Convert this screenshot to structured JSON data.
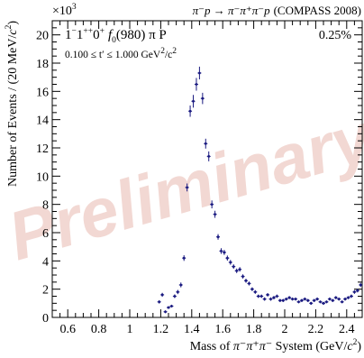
{
  "chart_data": {
    "type": "scatter",
    "title_reaction": "π⁻p → π⁻π⁺π⁻p",
    "title_source": "(COMPASS 2008)",
    "wave_label": {
      "prefix": "1",
      "sup1": "−",
      "mid": "1",
      "sup2": "++",
      "rest1": "0",
      "sup3": "+",
      "f": "f",
      "f_sub": "0",
      "rest2": "(980) π P"
    },
    "tprime_range": {
      "lower": "0.100",
      "middle": " ≤ t′ ≤ ",
      "upper": "1.000 GeV",
      "sup": "2",
      "tail": "/c",
      "sup2": "2"
    },
    "fraction_label": "0.25%",
    "watermark": "Preliminary",
    "y_multiplier": {
      "base": "×10",
      "exp": "3"
    },
    "xlabel": {
      "a": "Mass of ",
      "particles": "π⁻π⁺π⁻",
      "b": " System (GeV/",
      "c": "c",
      "sup": "2",
      "d": ")"
    },
    "ylabel": {
      "a": "Number of Events / (20 MeV/",
      "c": "c",
      "sup": "2",
      "d": ")"
    },
    "xlim": [
      0.5,
      2.5
    ],
    "ylim": [
      0,
      21
    ],
    "x_ticks": [
      "0.6",
      "0.8",
      "1",
      "1.2",
      "1.4",
      "1.6",
      "1.8",
      "2",
      "2.2",
      "2.4"
    ],
    "y_ticks": [
      "0",
      "2",
      "4",
      "6",
      "8",
      "10",
      "12",
      "14",
      "16",
      "18",
      "20"
    ],
    "marker_color": "#1a1a80",
    "watermark_color": "#f2d8d3",
    "series": [
      {
        "x": [
          1.19,
          1.21,
          1.23,
          1.25,
          1.27,
          1.29,
          1.31,
          1.33,
          1.35,
          1.37,
          1.39,
          1.41,
          1.43,
          1.45,
          1.47,
          1.49,
          1.51,
          1.53,
          1.55,
          1.57,
          1.59,
          1.61,
          1.63,
          1.65,
          1.67,
          1.69,
          1.71,
          1.73,
          1.75,
          1.77,
          1.79,
          1.81,
          1.83,
          1.85,
          1.87,
          1.89,
          1.91,
          1.93,
          1.95,
          1.97,
          1.99,
          2.01,
          2.03,
          2.05,
          2.07,
          2.09,
          2.11,
          2.13,
          2.15,
          2.17,
          2.19,
          2.21,
          2.23,
          2.25,
          2.27,
          2.29,
          2.31,
          2.33,
          2.35,
          2.37,
          2.39,
          2.41,
          2.43,
          2.45,
          2.47,
          2.49
        ],
        "y": [
          1.1,
          1.6,
          0.4,
          0.7,
          0.8,
          1.5,
          1.8,
          2.3,
          4.2,
          9.2,
          14.6,
          15.3,
          16.5,
          17.3,
          15.5,
          12.3,
          11.4,
          8.0,
          7.3,
          5.7,
          4.7,
          4.6,
          4.2,
          3.9,
          3.6,
          3.3,
          3.4,
          2.9,
          2.6,
          2.4,
          2.0,
          1.8,
          1.5,
          1.5,
          1.3,
          1.6,
          1.3,
          1.4,
          1.5,
          1.2,
          1.2,
          1.3,
          1.4,
          1.3,
          1.3,
          1.1,
          1.2,
          1.3,
          1.2,
          1.0,
          1.2,
          1.3,
          1.1,
          1.0,
          1.1,
          1.3,
          1.2,
          1.4,
          1.3,
          1.1,
          1.3,
          1.4,
          1.5,
          1.8,
          1.9,
          2.3
        ],
        "err": [
          0.12,
          0.14,
          0.1,
          0.1,
          0.1,
          0.13,
          0.15,
          0.17,
          0.2,
          0.28,
          0.4,
          0.45,
          0.45,
          0.45,
          0.4,
          0.35,
          0.35,
          0.28,
          0.25,
          0.2,
          0.2,
          0.18,
          0.18,
          0.17,
          0.16,
          0.16,
          0.16,
          0.15,
          0.14,
          0.14,
          0.13,
          0.13,
          0.12,
          0.12,
          0.12,
          0.12,
          0.12,
          0.12,
          0.12,
          0.11,
          0.11,
          0.11,
          0.11,
          0.11,
          0.11,
          0.1,
          0.11,
          0.11,
          0.11,
          0.1,
          0.11,
          0.11,
          0.1,
          0.1,
          0.1,
          0.11,
          0.11,
          0.11,
          0.11,
          0.1,
          0.11,
          0.11,
          0.12,
          0.13,
          0.13,
          0.15
        ]
      }
    ]
  }
}
